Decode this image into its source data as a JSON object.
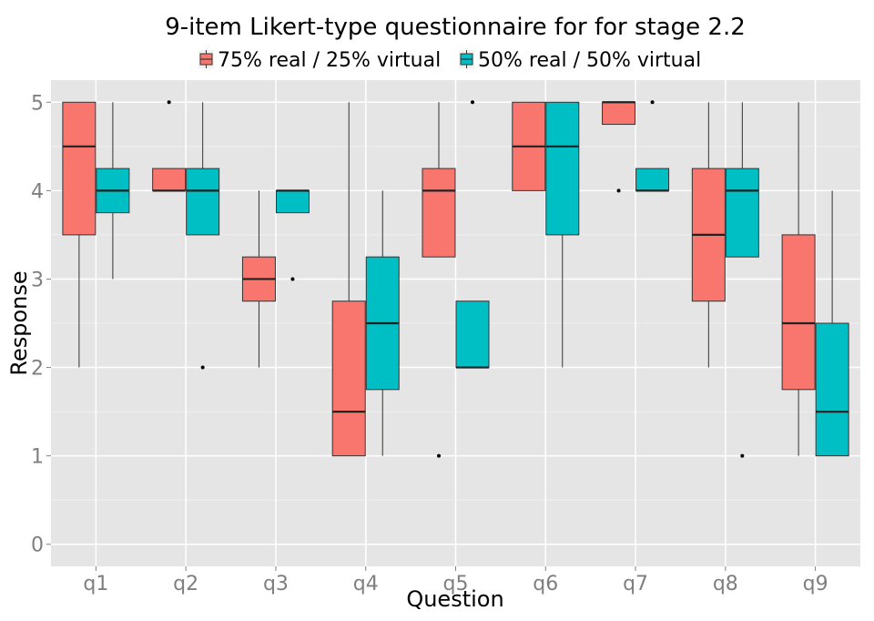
{
  "chart_data": {
    "type": "box",
    "title": "9-item Likert-type questionnaire for for stage 2.2",
    "xlabel": "Question",
    "ylabel": "Response",
    "categories": [
      "q1",
      "q2",
      "q3",
      "q4",
      "q5",
      "q6",
      "q7",
      "q8",
      "q9"
    ],
    "yticks": [
      "0",
      "1",
      "2",
      "3",
      "4",
      "5"
    ],
    "ylim": [
      -0.25,
      5.25
    ],
    "grid": true,
    "legend_position": "top",
    "series": [
      {
        "name": "75% real / 25% virtual",
        "color": "#F8766D",
        "boxes": [
          {
            "min": 2,
            "q1": 3.5,
            "median": 4.5,
            "q3": 5,
            "max": 5,
            "outliers": []
          },
          {
            "min": 4,
            "q1": 4,
            "median": 4,
            "q3": 4.25,
            "max": 4.25,
            "outliers": [
              5
            ]
          },
          {
            "min": 2,
            "q1": 2.75,
            "median": 3,
            "q3": 3.25,
            "max": 4,
            "outliers": []
          },
          {
            "min": 1,
            "q1": 1,
            "median": 1.5,
            "q3": 2.75,
            "max": 5,
            "outliers": []
          },
          {
            "min": 3.25,
            "q1": 3.25,
            "median": 4,
            "q3": 4.25,
            "max": 5,
            "outliers": [
              1
            ]
          },
          {
            "min": 4,
            "q1": 4,
            "median": 4.5,
            "q3": 5,
            "max": 5,
            "outliers": []
          },
          {
            "min": 4.75,
            "q1": 4.75,
            "median": 5,
            "q3": 5,
            "max": 5,
            "outliers": [
              4
            ]
          },
          {
            "min": 2,
            "q1": 2.75,
            "median": 3.5,
            "q3": 4.25,
            "max": 5,
            "outliers": []
          },
          {
            "min": 1,
            "q1": 1.75,
            "median": 2.5,
            "q3": 3.5,
            "max": 5,
            "outliers": []
          }
        ]
      },
      {
        "name": "50% real / 50% virtual",
        "color": "#00BFC4",
        "boxes": [
          {
            "min": 3,
            "q1": 3.75,
            "median": 4,
            "q3": 4.25,
            "max": 5,
            "outliers": []
          },
          {
            "min": 3.5,
            "q1": 3.5,
            "median": 4,
            "q3": 4.25,
            "max": 5,
            "outliers": [
              2
            ]
          },
          {
            "min": 3.75,
            "q1": 3.75,
            "median": 4,
            "q3": 4,
            "max": 4,
            "outliers": [
              3
            ]
          },
          {
            "min": 1,
            "q1": 1.75,
            "median": 2.5,
            "q3": 3.25,
            "max": 4,
            "outliers": []
          },
          {
            "min": 2,
            "q1": 2,
            "median": 2,
            "q3": 2.75,
            "max": 2.75,
            "outliers": [
              5
            ]
          },
          {
            "min": 2,
            "q1": 3.5,
            "median": 4.5,
            "q3": 5,
            "max": 5,
            "outliers": []
          },
          {
            "min": 4,
            "q1": 4,
            "median": 4,
            "q3": 4.25,
            "max": 4.25,
            "outliers": [
              5
            ]
          },
          {
            "min": 3.25,
            "q1": 3.25,
            "median": 4,
            "q3": 4.25,
            "max": 5,
            "outliers": [
              1
            ]
          },
          {
            "min": 1,
            "q1": 1,
            "median": 1.5,
            "q3": 2.5,
            "max": 4,
            "outliers": []
          }
        ]
      }
    ]
  }
}
